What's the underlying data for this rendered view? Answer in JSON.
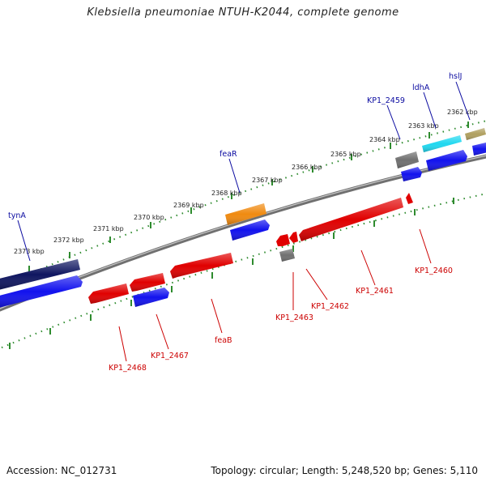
{
  "title": "Klebsiella pneumoniae NTUH-K2044, complete genome",
  "accession_text": "Accession: NC_012731",
  "topology_text": "Topology: circular; Length: 5,248,520 bp; Genes: 5,110",
  "colors": {
    "backbone": "#8a8a8a",
    "dots": "#2e8b2e",
    "forward_label": "#0a0aa0",
    "reverse_label": "#cc0000",
    "red": "#e00000",
    "blue": "#1212ee",
    "navy": "#0f1660",
    "orange": "#f08a10",
    "gray": "#707070",
    "cyan": "#20d8f0",
    "khaki": "#b0a060"
  },
  "kbp_ticks": [
    "2362 kbp",
    "2363 kbp",
    "2364 kbp",
    "2365 kbp",
    "2366 kbp",
    "2367 kbp",
    "2368 kbp",
    "2369 kbp",
    "2370 kbp",
    "2371 kbp",
    "2372 kbp",
    "2373 kbp"
  ],
  "labels": {
    "forward": [
      "hslJ",
      "ldhA",
      "KP1_2459",
      "feaR",
      "tynA"
    ],
    "reverse": [
      "KP1_2460",
      "KP1_2461",
      "KP1_2462",
      "KP1_2463",
      "feaB",
      "KP1_2467",
      "KP1_2468"
    ]
  }
}
